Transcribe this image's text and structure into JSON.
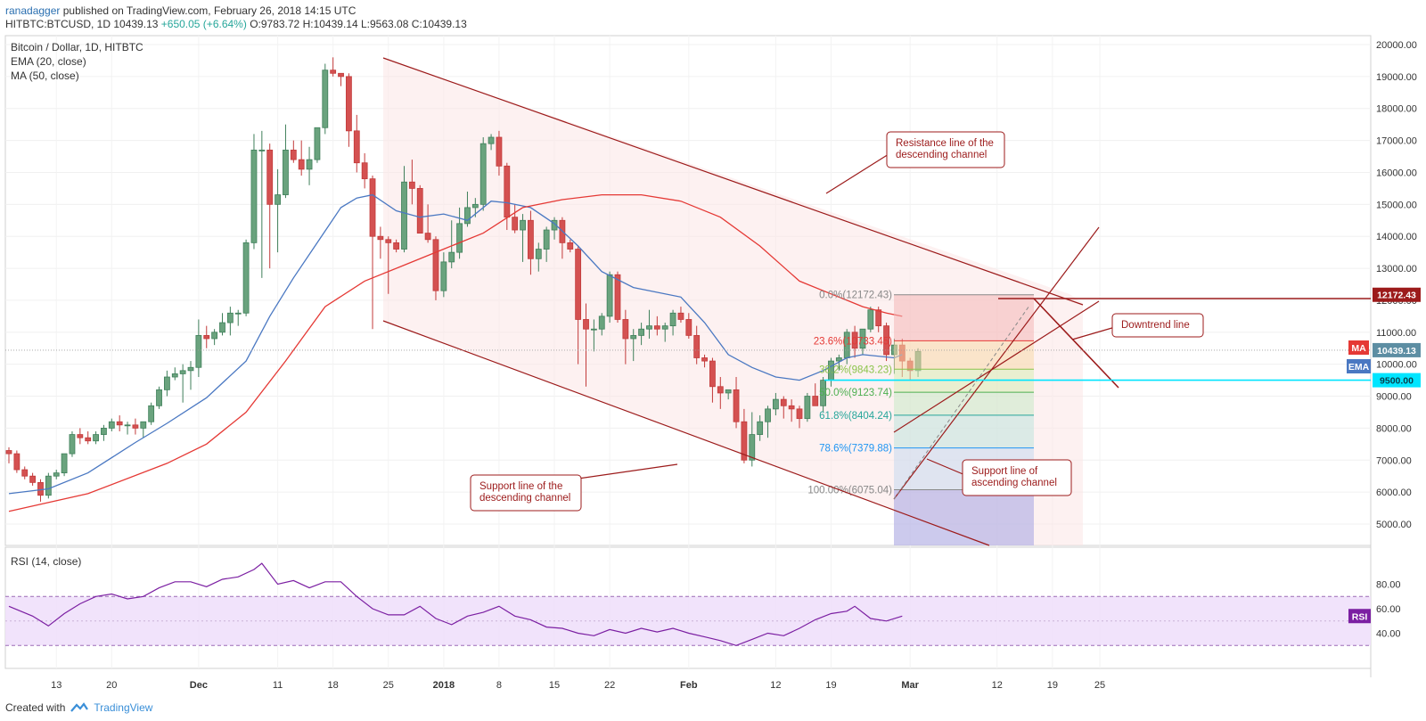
{
  "header": {
    "author": "ranadagger",
    "published_text": "published on TradingView.com, February 26, 2018 14:15 UTC",
    "symbol": "HITBTC:BTCUSD, 1D",
    "last": "10439.13",
    "change": "+650.05 (+6.64%)",
    "open": "O:9783.72",
    "high": "H:10439.14",
    "low": "L:9563.08",
    "close": "C:10439.13"
  },
  "legend": {
    "title": "Bitcoin / Dollar, 1D, HITBTC",
    "ema": "EMA (20, close)",
    "ma": "MA (50, close)",
    "rsi": "RSI (14, close)"
  },
  "footer": {
    "created_with": "Created with",
    "brand": "TradingView"
  },
  "colors": {
    "up": "#53b987",
    "down": "#eb4d5c",
    "ema": "#4a78c2",
    "ma": "#e53935",
    "channel": "#9c1b1b",
    "rsi": "#7b1fa2",
    "horizontal": "#00e5ff"
  },
  "annotations": {
    "resistance": [
      "Resistance line of the",
      "descending channel"
    ],
    "support_desc": [
      "Support line of the",
      "descending channel"
    ],
    "support_asc": [
      "Support line of",
      "ascending channel"
    ],
    "downtrend": "Downtrend line"
  },
  "fib_levels": [
    {
      "label": "0.0%(12172.43)",
      "price": 12172.43,
      "color": "#888888"
    },
    {
      "label": "23.6%(10733.45)",
      "price": 10733.45,
      "color": "#e53935"
    },
    {
      "label": "38.2%(9843.23)",
      "price": 9843.23,
      "color": "#8bc34a"
    },
    {
      "label": "50.0%(9123.74)",
      "price": 9123.74,
      "color": "#4caf50"
    },
    {
      "label": "61.8%(8404.24)",
      "price": 8404.24,
      "color": "#26a69a"
    },
    {
      "label": "78.6%(7379.88)",
      "price": 7379.88,
      "color": "#2196f3"
    },
    {
      "label": "100.00%(6075.04)",
      "price": 6075.04,
      "color": "#888888"
    }
  ],
  "price_badges": {
    "level_12172": "12172.43",
    "ma": "MA",
    "ema": "EMA",
    "last": "10439.13",
    "support": "9500.00",
    "rsi": "RSI"
  },
  "chart_data": {
    "type": "candlestick",
    "title": "Bitcoin / Dollar, 1D, HITBTC",
    "y_ticks": [
      "20000.00",
      "19000.00",
      "18000.00",
      "17000.00",
      "16000.00",
      "15000.00",
      "14000.00",
      "13000.00",
      "12000.00",
      "11000.00",
      "10000.00",
      "9000.00",
      "8000.00",
      "7000.00",
      "6000.00",
      "5000.00"
    ],
    "y_tick_values": [
      20000,
      19000,
      18000,
      17000,
      16000,
      15000,
      14000,
      13000,
      12000,
      11000,
      10000,
      9000,
      8000,
      7000,
      6000,
      5000
    ],
    "x_ticks": [
      {
        "label": "13",
        "i": 6
      },
      {
        "label": "20",
        "i": 13
      },
      {
        "label": "Dec",
        "i": 24
      },
      {
        "label": "11",
        "i": 34
      },
      {
        "label": "18",
        "i": 41
      },
      {
        "label": "25",
        "i": 48
      },
      {
        "label": "2018",
        "i": 55
      },
      {
        "label": "8",
        "i": 62
      },
      {
        "label": "15",
        "i": 69
      },
      {
        "label": "22",
        "i": 76
      },
      {
        "label": "Feb",
        "i": 86
      },
      {
        "label": "12",
        "i": 97
      },
      {
        "label": "19",
        "i": 104
      },
      {
        "label": "Mar",
        "i": 114
      },
      {
        "label": "12",
        "i": 125
      },
      {
        "label": "19",
        "i": 132
      },
      {
        "label": "25",
        "i": 138
      }
    ],
    "ohlc": [
      [
        7300,
        7400,
        6900,
        7200
      ],
      [
        7200,
        7300,
        6600,
        6700
      ],
      [
        6700,
        6800,
        6400,
        6500
      ],
      [
        6500,
        6600,
        6200,
        6300
      ],
      [
        6300,
        6400,
        5700,
        5900
      ],
      [
        5900,
        6600,
        5800,
        6500
      ],
      [
        6500,
        6700,
        6400,
        6600
      ],
      [
        6600,
        7200,
        6500,
        7200
      ],
      [
        7200,
        7900,
        7100,
        7800
      ],
      [
        7800,
        8000,
        7500,
        7700
      ],
      [
        7700,
        7900,
        7500,
        7600
      ],
      [
        7600,
        7900,
        7500,
        7800
      ],
      [
        7800,
        8100,
        7600,
        8000
      ],
      [
        8000,
        8300,
        7900,
        8200
      ],
      [
        8200,
        8400,
        7900,
        8100
      ],
      [
        8100,
        8200,
        7800,
        8100
      ],
      [
        8100,
        8300,
        7800,
        8000
      ],
      [
        8000,
        8200,
        7700,
        8200
      ],
      [
        8200,
        8800,
        8100,
        8700
      ],
      [
        8700,
        9300,
        8600,
        9200
      ],
      [
        9200,
        9800,
        9000,
        9600
      ],
      [
        9600,
        9900,
        9500,
        9700
      ],
      [
        9700,
        10000,
        8800,
        9800
      ],
      [
        9800,
        10100,
        9200,
        9900
      ],
      [
        9900,
        11400,
        9600,
        10900
      ],
      [
        10900,
        11200,
        10500,
        10800
      ],
      [
        10800,
        11100,
        10600,
        11000
      ],
      [
        11000,
        11600,
        10900,
        11300
      ],
      [
        11300,
        11800,
        10900,
        11600
      ],
      [
        11600,
        11700,
        11200,
        11600
      ],
      [
        11600,
        13900,
        11500,
        13800
      ],
      [
        13800,
        17200,
        13600,
        16700
      ],
      [
        16700,
        17300,
        12700,
        16700
      ],
      [
        16700,
        16900,
        13000,
        15000
      ],
      [
        15000,
        16100,
        13500,
        15300
      ],
      [
        15300,
        17500,
        15200,
        16700
      ],
      [
        16700,
        17000,
        16300,
        16400
      ],
      [
        16400,
        17000,
        15900,
        16100
      ],
      [
        16100,
        16800,
        15600,
        16400
      ],
      [
        16400,
        17400,
        16300,
        17400
      ],
      [
        17400,
        19400,
        17200,
        19200
      ],
      [
        19200,
        19600,
        19000,
        19100
      ],
      [
        19100,
        19000,
        18700,
        19000
      ],
      [
        19000,
        19100,
        16800,
        17300
      ],
      [
        17300,
        17800,
        16000,
        16300
      ],
      [
        16300,
        16600,
        15500,
        15800
      ],
      [
        15800,
        15900,
        11100,
        14000
      ],
      [
        14000,
        14300,
        13300,
        13900
      ],
      [
        13900,
        14000,
        12200,
        13800
      ],
      [
        13800,
        13900,
        13500,
        13600
      ],
      [
        13600,
        16200,
        13500,
        15700
      ],
      [
        15700,
        16400,
        15000,
        15500
      ],
      [
        15500,
        15600,
        14100,
        14100
      ],
      [
        14100,
        15000,
        13800,
        13900
      ],
      [
        13900,
        14000,
        12000,
        12300
      ],
      [
        12300,
        13500,
        12100,
        13200
      ],
      [
        13200,
        14500,
        13000,
        13500
      ],
      [
        13500,
        14900,
        13300,
        14400
      ],
      [
        14400,
        15400,
        14300,
        14900
      ],
      [
        14900,
        15200,
        14600,
        15000
      ],
      [
        15000,
        17100,
        14800,
        16900
      ],
      [
        16900,
        17200,
        16700,
        17100
      ],
      [
        17100,
        17300,
        15900,
        16200
      ],
      [
        16200,
        16300,
        14200,
        14600
      ],
      [
        14600,
        15000,
        14100,
        14200
      ],
      [
        14200,
        14700,
        13200,
        14500
      ],
      [
        14500,
        14800,
        12800,
        13300
      ],
      [
        13300,
        13800,
        12900,
        13600
      ],
      [
        13600,
        14300,
        13200,
        14200
      ],
      [
        14200,
        14600,
        13900,
        14500
      ],
      [
        14500,
        14600,
        13300,
        13800
      ],
      [
        13800,
        13900,
        13500,
        13600
      ],
      [
        13600,
        13700,
        10000,
        11400
      ],
      [
        11400,
        11900,
        9300,
        11100
      ],
      [
        11100,
        11400,
        10400,
        11100
      ],
      [
        11100,
        11600,
        10900,
        11500
      ],
      [
        11500,
        12900,
        11300,
        12800
      ],
      [
        12800,
        12900,
        11300,
        11400
      ],
      [
        11400,
        11700,
        10000,
        10800
      ],
      [
        10800,
        11100,
        10100,
        10900
      ],
      [
        10900,
        11300,
        10600,
        11100
      ],
      [
        11100,
        11700,
        10800,
        11200
      ],
      [
        11200,
        11500,
        10900,
        11100
      ],
      [
        11100,
        11300,
        10700,
        11200
      ],
      [
        11200,
        11700,
        10900,
        11600
      ],
      [
        11600,
        11800,
        11300,
        11400
      ],
      [
        11400,
        11600,
        10800,
        10900
      ],
      [
        10900,
        11200,
        10000,
        10200
      ],
      [
        10200,
        10300,
        9900,
        10100
      ],
      [
        10100,
        10200,
        8800,
        9300
      ],
      [
        9300,
        9600,
        8600,
        9100
      ],
      [
        9100,
        9200,
        8900,
        9200
      ],
      [
        9200,
        9600,
        8000,
        8200
      ],
      [
        8200,
        8600,
        6900,
        7000
      ],
      [
        7000,
        8500,
        6800,
        7800
      ],
      [
        7800,
        8400,
        7600,
        8200
      ],
      [
        8200,
        8700,
        7700,
        8600
      ],
      [
        8600,
        9100,
        8400,
        8900
      ],
      [
        8900,
        9000,
        8300,
        8700
      ],
      [
        8700,
        8900,
        8200,
        8600
      ],
      [
        8600,
        8700,
        8000,
        8300
      ],
      [
        8300,
        9100,
        8200,
        9000
      ],
      [
        9000,
        9400,
        8700,
        8700
      ],
      [
        8700,
        9600,
        8500,
        9500
      ],
      [
        9500,
        10200,
        9300,
        10100
      ],
      [
        10100,
        10300,
        9800,
        10200
      ],
      [
        10200,
        11100,
        10000,
        11000
      ],
      [
        11000,
        11200,
        10200,
        10500
      ],
      [
        10500,
        11000,
        10300,
        11100
      ],
      [
        11100,
        11800,
        11000,
        11700
      ],
      [
        11700,
        11800,
        11000,
        11200
      ],
      [
        11200,
        11300,
        10100,
        10300
      ],
      [
        10300,
        10800,
        9700,
        10600
      ],
      [
        10600,
        10800,
        9600,
        10100
      ],
      [
        10100,
        10200,
        9500,
        9800
      ],
      [
        9800,
        10500,
        9600,
        10400
      ]
    ],
    "ema20": [
      [
        0,
        5950
      ],
      [
        5,
        6100
      ],
      [
        10,
        6600
      ],
      [
        16,
        7550
      ],
      [
        20,
        8150
      ],
      [
        25,
        8950
      ],
      [
        30,
        10100
      ],
      [
        33,
        11500
      ],
      [
        36,
        12700
      ],
      [
        39,
        13800
      ],
      [
        42,
        14900
      ],
      [
        44,
        15200
      ],
      [
        46,
        15300
      ],
      [
        49,
        14800
      ],
      [
        52,
        14600
      ],
      [
        55,
        14700
      ],
      [
        58,
        14500
      ],
      [
        61,
        15100
      ],
      [
        63,
        15050
      ],
      [
        66,
        14900
      ],
      [
        69,
        14400
      ],
      [
        72,
        13700
      ],
      [
        75,
        12900
      ],
      [
        79,
        12400
      ],
      [
        85,
        12100
      ],
      [
        88,
        11300
      ],
      [
        91,
        10300
      ],
      [
        94,
        9900
      ],
      [
        97,
        9600
      ],
      [
        100,
        9500
      ],
      [
        103,
        9800
      ],
      [
        106,
        10200
      ],
      [
        108,
        10300
      ],
      [
        112,
        10200
      ],
      [
        113,
        10300
      ]
    ],
    "ma50": [
      [
        0,
        5400
      ],
      [
        10,
        5950
      ],
      [
        20,
        6900
      ],
      [
        25,
        7500
      ],
      [
        30,
        8500
      ],
      [
        35,
        10100
      ],
      [
        40,
        11800
      ],
      [
        45,
        12600
      ],
      [
        50,
        13100
      ],
      [
        55,
        13600
      ],
      [
        60,
        14100
      ],
      [
        65,
        14900
      ],
      [
        70,
        15150
      ],
      [
        75,
        15300
      ],
      [
        80,
        15300
      ],
      [
        85,
        15100
      ],
      [
        90,
        14600
      ],
      [
        95,
        13700
      ],
      [
        100,
        12600
      ],
      [
        104,
        12200
      ],
      [
        106,
        12000
      ],
      [
        108,
        11800
      ],
      [
        111,
        11600
      ],
      [
        113,
        11500
      ]
    ],
    "rsi_ticks": [
      "80.00",
      "60.00",
      "40.00"
    ],
    "rsi": [
      [
        0,
        62
      ],
      [
        3,
        54
      ],
      [
        5,
        46
      ],
      [
        7,
        56
      ],
      [
        9,
        64
      ],
      [
        11,
        70
      ],
      [
        13,
        72
      ],
      [
        15,
        68
      ],
      [
        17,
        70
      ],
      [
        19,
        77
      ],
      [
        21,
        82
      ],
      [
        23,
        82
      ],
      [
        25,
        78
      ],
      [
        27,
        84
      ],
      [
        29,
        86
      ],
      [
        31,
        92
      ],
      [
        32,
        97
      ],
      [
        34,
        80
      ],
      [
        36,
        83
      ],
      [
        38,
        77
      ],
      [
        40,
        82
      ],
      [
        42,
        82
      ],
      [
        44,
        70
      ],
      [
        46,
        60
      ],
      [
        48,
        55
      ],
      [
        50,
        55
      ],
      [
        52,
        62
      ],
      [
        54,
        52
      ],
      [
        56,
        47
      ],
      [
        58,
        54
      ],
      [
        60,
        57
      ],
      [
        62,
        62
      ],
      [
        64,
        54
      ],
      [
        66,
        51
      ],
      [
        68,
        45
      ],
      [
        70,
        44
      ],
      [
        72,
        40
      ],
      [
        74,
        38
      ],
      [
        76,
        43
      ],
      [
        78,
        40
      ],
      [
        80,
        44
      ],
      [
        82,
        41
      ],
      [
        84,
        44
      ],
      [
        86,
        40
      ],
      [
        88,
        37
      ],
      [
        90,
        34
      ],
      [
        92,
        30
      ],
      [
        94,
        35
      ],
      [
        96,
        40
      ],
      [
        98,
        38
      ],
      [
        100,
        44
      ],
      [
        102,
        51
      ],
      [
        104,
        56
      ],
      [
        106,
        58
      ],
      [
        107,
        62
      ],
      [
        109,
        52
      ],
      [
        111,
        50
      ],
      [
        113,
        54
      ]
    ],
    "rsi_range": [
      20,
      100
    ],
    "horizontal_lines": [
      12172.43,
      9500.0
    ]
  }
}
